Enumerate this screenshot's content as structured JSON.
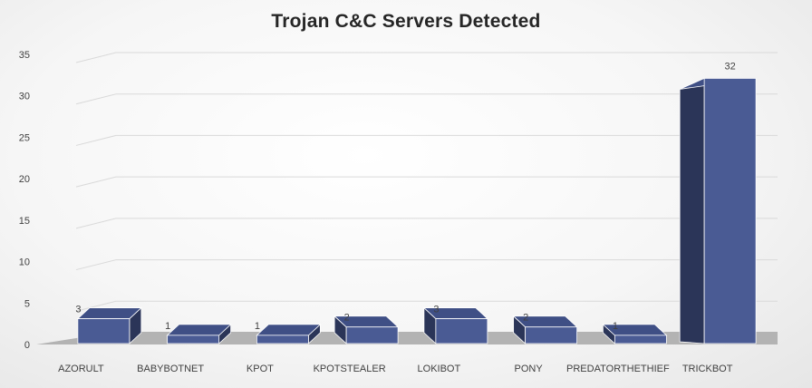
{
  "chart_data": {
    "type": "bar",
    "title": "Trojan C&C Servers Detected",
    "categories": [
      "AZORULT",
      "BABYBOTNET",
      "KPOT",
      "KPOTSTEALER",
      "LOKIBOT",
      "PONY",
      "PREDATORTHETHIEF",
      "TRICKBOT"
    ],
    "values": [
      3,
      1,
      1,
      2,
      3,
      2,
      1,
      32
    ],
    "ylim": [
      0,
      35
    ],
    "yticks": [
      0,
      5,
      10,
      15,
      20,
      25,
      30,
      35
    ],
    "grid": true,
    "legend": "none",
    "bar_style": "3d",
    "colors": {
      "bar_front": "#4a5b94",
      "bar_top": "#3f4f85",
      "bar_side": "#2b3558",
      "floor": "#b3b3b3"
    }
  }
}
